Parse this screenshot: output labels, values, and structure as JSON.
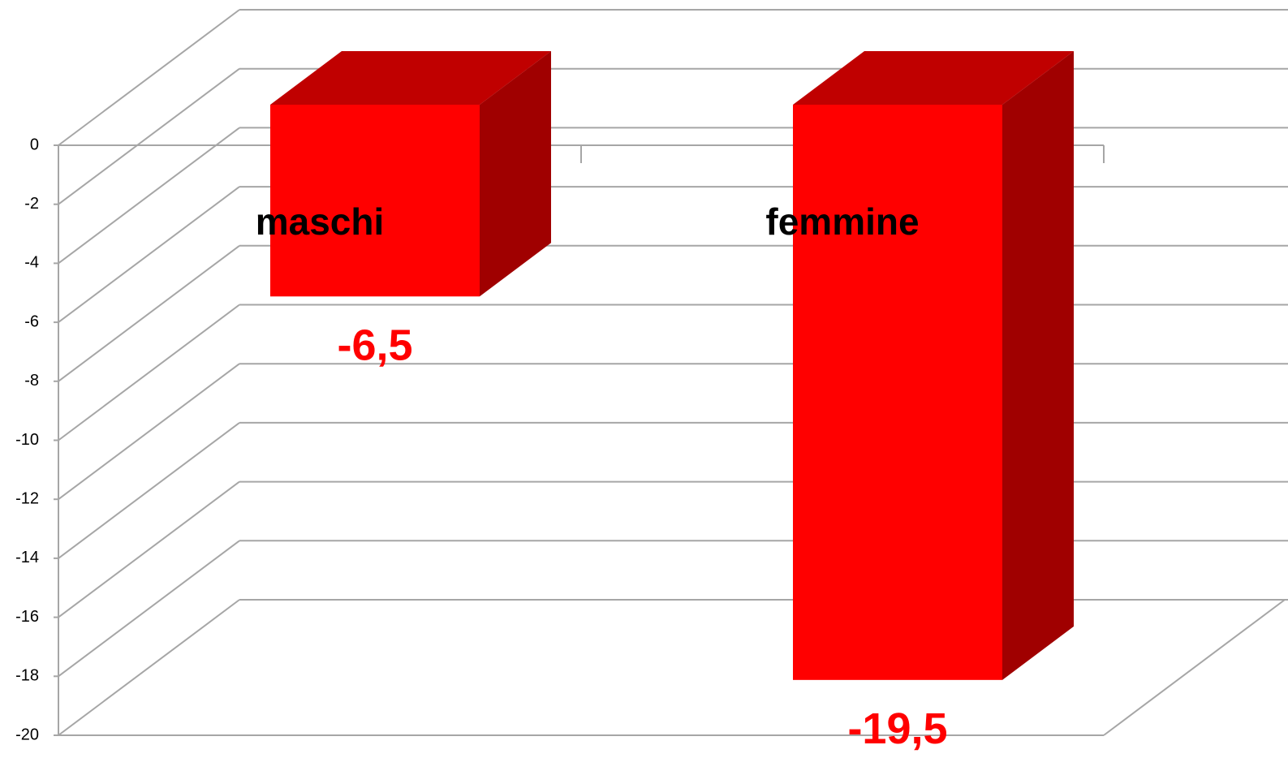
{
  "chart_data": {
    "type": "bar3d",
    "categories": [
      "maschi",
      "femmine"
    ],
    "values": [
      -6.5,
      -19.5
    ],
    "value_labels": [
      "-6,5",
      "-19,5"
    ],
    "color": "#ff0000",
    "ylim": [
      -20,
      0
    ],
    "yticks": [
      0,
      -2,
      -4,
      -6,
      -8,
      -10,
      -12,
      -14,
      -16,
      -18,
      -20
    ],
    "grid": true
  }
}
